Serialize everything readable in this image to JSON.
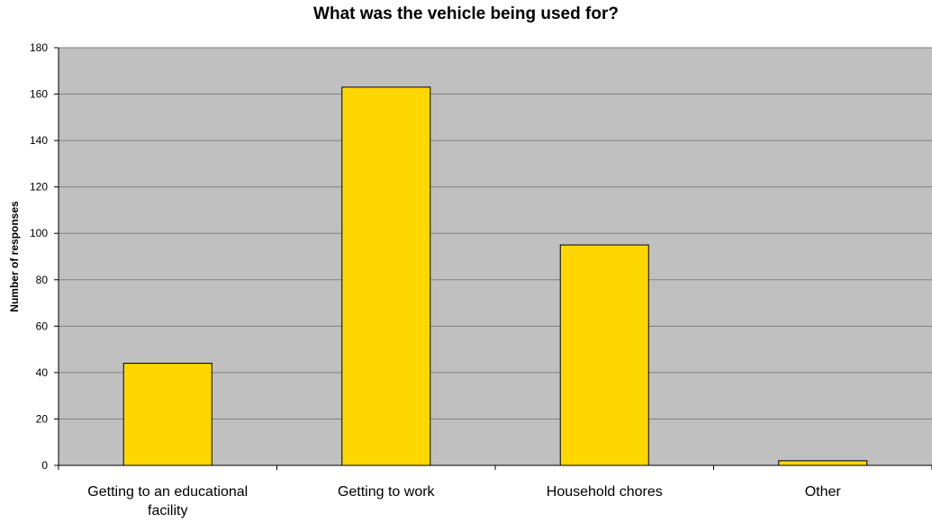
{
  "chart_data": {
    "type": "bar",
    "title": "What was the vehicle being used for?",
    "xlabel": "",
    "ylabel": "Number of responses",
    "categories": [
      "Getting to an educational facility",
      "Getting to work",
      "Household chores",
      "Other"
    ],
    "category_lines": [
      [
        "Getting to an educational",
        "facility"
      ],
      [
        "Getting to work"
      ],
      [
        "Household chores"
      ],
      [
        "Other"
      ]
    ],
    "values": [
      44,
      163,
      95,
      2
    ],
    "ylim": [
      0,
      180
    ],
    "yticks": [
      0,
      20,
      40,
      60,
      80,
      100,
      120,
      140,
      160,
      180
    ],
    "grid": true,
    "legend": "none",
    "colors": {
      "bar": "#FFD700",
      "plot_bg": "#C0C0C0",
      "gridline": "#808080",
      "axis": "#000000"
    }
  }
}
